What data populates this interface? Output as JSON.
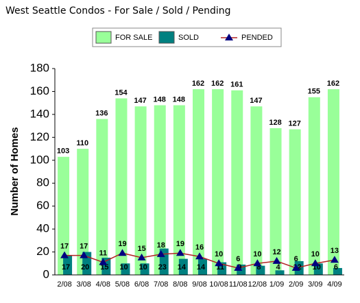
{
  "chart_data": {
    "type": "bar-line",
    "title": "West Seattle Condos - For Sale / Sold / Pending",
    "y_label": "Number of Homes",
    "categories": [
      "2/08",
      "3/08",
      "4/08",
      "5/08",
      "6/08",
      "7/08",
      "8/08",
      "9/08",
      "10/08",
      "11/08",
      "12/08",
      "1/09",
      "2/09",
      "3/09",
      "4/09"
    ],
    "series": [
      {
        "name": "FOR SALE",
        "color": "#99ff99",
        "values": [
          103,
          110,
          136,
          154,
          147,
          148,
          148,
          162,
          162,
          161,
          147,
          128,
          127,
          155,
          162
        ]
      },
      {
        "name": "SOLD",
        "color": "#008080",
        "values": [
          17,
          20,
          15,
          10,
          10,
          23,
          14,
          14,
          11,
          9,
          8,
          4,
          12,
          10,
          6
        ]
      },
      {
        "name": "PENDED",
        "color": "#b22222",
        "marker_color": "#000080",
        "values": [
          17,
          17,
          11,
          19,
          15,
          18,
          19,
          16,
          10,
          6,
          10,
          12,
          6,
          10,
          13
        ]
      }
    ],
    "ylim": [
      0,
      180
    ],
    "yticks": [
      0,
      20,
      40,
      60,
      80,
      100,
      120,
      140,
      160,
      180
    ]
  }
}
